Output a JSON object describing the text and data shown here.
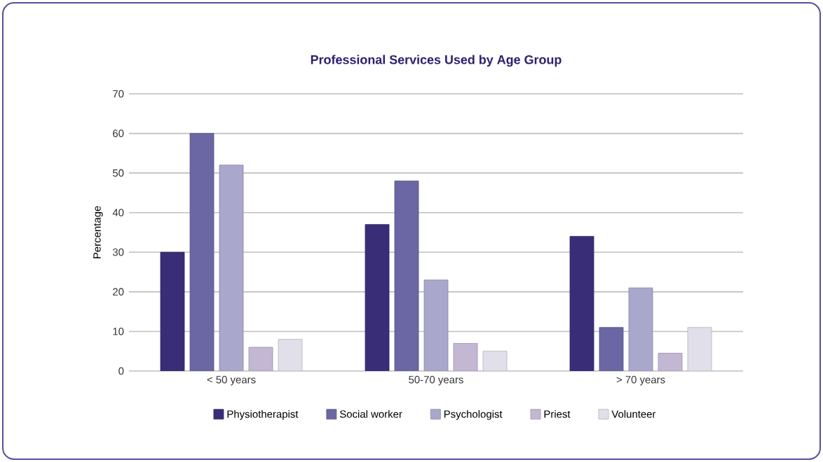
{
  "chart_data": {
    "type": "bar",
    "title": "Professional Services Used by Age Group",
    "ylabel": "Percentage",
    "categories": [
      "< 50 years",
      "50-70 years",
      "> 70 years"
    ],
    "series": [
      {
        "name": "Physiotherapist",
        "color": "#3a2d78",
        "values": [
          30,
          37,
          34
        ]
      },
      {
        "name": "Social worker",
        "color": "#6b67a4",
        "values": [
          60,
          48,
          11
        ]
      },
      {
        "name": "Psychologist",
        "color": "#a9a7cc",
        "values": [
          52,
          23,
          21
        ]
      },
      {
        "name": "Priest",
        "color": "#c3b7d4",
        "values": [
          6,
          7,
          4.5
        ]
      },
      {
        "name": "Volunteer",
        "color": "#e0dfea",
        "values": [
          8,
          5,
          11
        ]
      }
    ],
    "ylim": [
      0,
      70
    ],
    "yticks": [
      0,
      10,
      20,
      30,
      40,
      50,
      60,
      70
    ],
    "grid": "y",
    "legend": "bottom"
  }
}
